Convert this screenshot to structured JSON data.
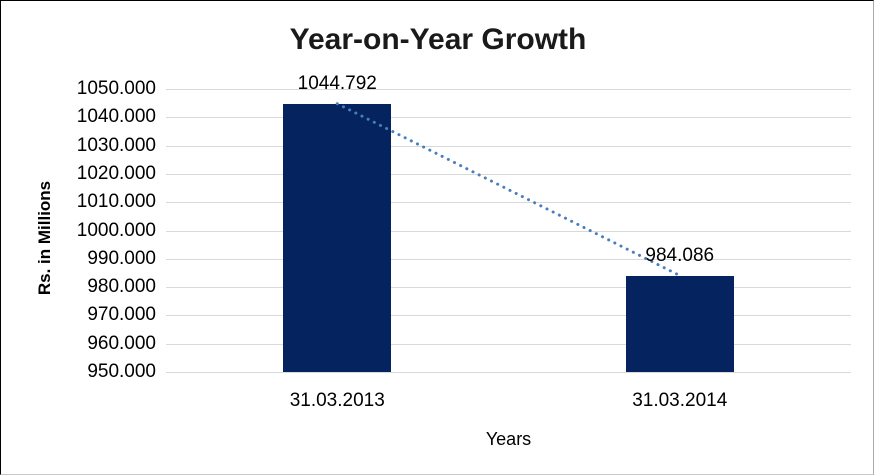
{
  "chart_data": {
    "type": "bar",
    "title": "Year-on-Year Growth",
    "xlabel": "Years",
    "ylabel": "Rs. in Millions",
    "categories": [
      "31.03.2013",
      "31.03.2014"
    ],
    "values": [
      1044.792,
      984.086
    ],
    "data_labels": [
      "1044.792",
      "984.086"
    ],
    "ylim": [
      950,
      1050
    ],
    "ytick_step": 10,
    "ytick_labels": [
      "1050.000",
      "1040.000",
      "1030.000",
      "1020.000",
      "1010.000",
      "1000.000",
      "990.000",
      "980.000",
      "970.000",
      "960.000",
      "950.000"
    ],
    "grid": true,
    "legend": "none",
    "bar_color": "#04235f",
    "trendline": {
      "style": "dotted",
      "color": "#4a7ebb",
      "from_value": 1044.792,
      "to_value": 984.086
    },
    "gridline_color": "#d9d9d9"
  }
}
